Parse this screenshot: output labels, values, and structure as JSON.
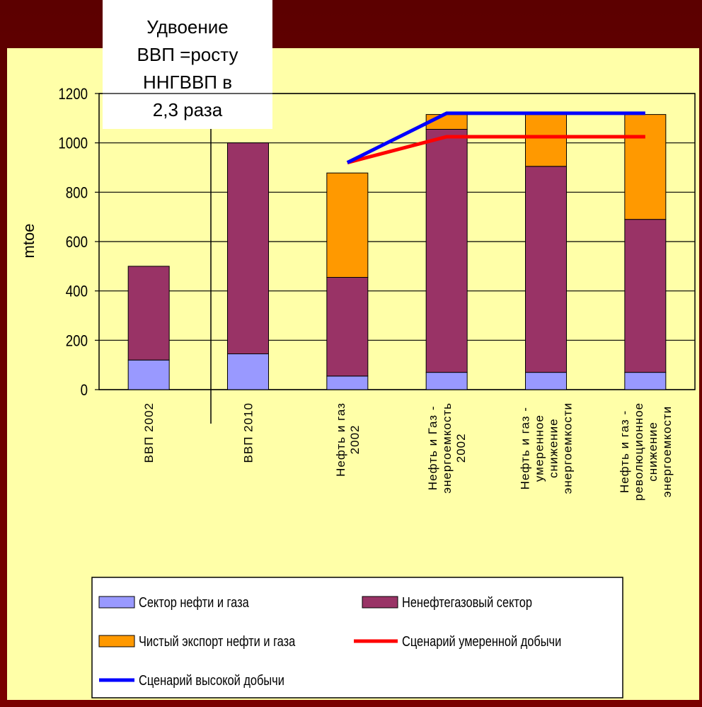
{
  "chart_data": {
    "type": "bar",
    "annotation": [
      "Удвоение",
      "ВВП =росту",
      "ННГВВП в",
      "2,3 раза"
    ],
    "y_label": "mtoe",
    "categories": [
      [
        "ВВП 2002"
      ],
      [
        "ВВП 2010"
      ],
      [
        "Нефть и газ",
        "2002"
      ],
      [
        "Нефть и Газ -",
        "энергоемкость",
        "2002"
      ],
      [
        "Нефть и газ -",
        "умеренное",
        "снижение",
        "энергоемкости"
      ],
      [
        "Нефть и газ -",
        "революционное",
        "снижение",
        "энергоемкости"
      ]
    ],
    "series": [
      {
        "name": "Сектор нефти и газа",
        "type": "bar",
        "color": "#9999ff",
        "values": [
          120,
          145,
          55,
          70,
          70,
          70
        ]
      },
      {
        "name": "Ненефтегазовый сектор",
        "type": "bar",
        "color": "#993366",
        "values": [
          380,
          855,
          400,
          985,
          835,
          620
        ]
      },
      {
        "name": "Чистый экспорт нефти и газа",
        "type": "bar",
        "color": "#ff9900",
        "values": [
          0,
          0,
          423,
          60,
          210,
          425
        ]
      },
      {
        "name": "Сценарий умеренной добычи",
        "type": "line",
        "color": "#ff0000",
        "values": [
          null,
          null,
          920,
          1025,
          1025,
          1025
        ]
      },
      {
        "name": "Сценарий высокой добычи",
        "type": "line",
        "color": "#0000ff",
        "values": [
          null,
          null,
          920,
          1120,
          1120,
          1120
        ]
      }
    ],
    "ylim": [
      0,
      1200
    ],
    "yticks": [
      0,
      200,
      400,
      600,
      800,
      1000,
      1200
    ],
    "grid": true
  }
}
